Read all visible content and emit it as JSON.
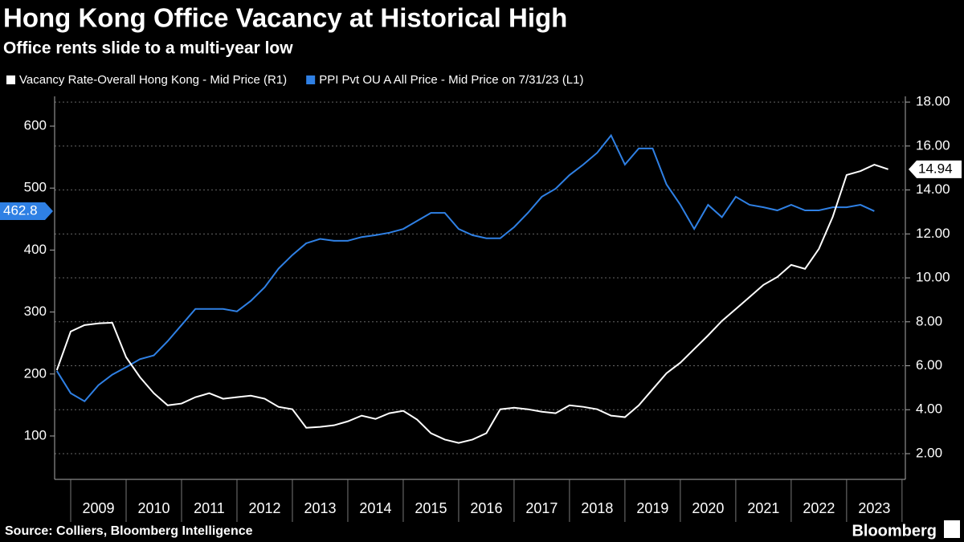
{
  "title": "Hong Kong Office Vacancy at Historical High",
  "subtitle": "Office rents slide to a multi-year low",
  "source": "Source: Colliers, Bloomberg Intelligence",
  "brand": "Bloomberg",
  "chart_data": {
    "type": "line",
    "x": [
      2008.75,
      2009,
      2009.25,
      2009.5,
      2009.75,
      2010,
      2010.25,
      2010.5,
      2010.75,
      2011,
      2011.25,
      2011.5,
      2011.75,
      2012,
      2012.25,
      2012.5,
      2012.75,
      2013,
      2013.25,
      2013.5,
      2013.75,
      2014,
      2014.25,
      2014.5,
      2014.75,
      2015,
      2015.25,
      2015.5,
      2015.75,
      2016,
      2016.25,
      2016.5,
      2016.75,
      2017,
      2017.25,
      2017.5,
      2017.75,
      2018,
      2018.25,
      2018.5,
      2018.75,
      2019,
      2019.25,
      2019.5,
      2019.75,
      2020,
      2020.25,
      2020.5,
      2020.75,
      2021,
      2021.25,
      2021.5,
      2021.75,
      2022,
      2022.25,
      2022.5,
      2022.75,
      2023,
      2023.25,
      2023.5,
      2023.75
    ],
    "series": [
      {
        "name": "PPI Pvt OU A All Price - Mid Price on 7/31/23 (L1)",
        "color": "#2f80e4",
        "values": [
          205,
          169,
          156,
          182,
          199,
          211,
          224,
          230,
          253,
          279,
          305,
          305,
          305,
          301,
          318,
          340,
          370,
          392,
          411,
          418,
          415,
          415,
          421,
          424,
          428,
          434,
          447,
          460,
          460,
          434,
          424,
          419,
          419,
          437,
          460,
          486,
          499,
          521,
          538,
          557,
          585,
          538,
          564,
          564,
          506,
          473,
          434,
          473,
          453,
          486,
          473,
          469,
          464,
          473,
          464,
          464,
          469,
          469,
          473,
          462.8,
          null
        ]
      },
      {
        "name": "Vacancy Rate-Overall Hong Kong - Mid Price (R1)",
        "color": "#ffffff",
        "axis": "y2",
        "values": [
          5.8,
          7.56,
          7.85,
          7.93,
          7.96,
          6.39,
          5.48,
          4.75,
          4.2,
          4.28,
          4.57,
          4.75,
          4.5,
          4.57,
          4.64,
          4.5,
          4.13,
          4.02,
          3.18,
          3.22,
          3.29,
          3.47,
          3.73,
          3.58,
          3.84,
          3.95,
          3.55,
          2.93,
          2.64,
          2.49,
          2.64,
          2.93,
          4.02,
          4.09,
          4.02,
          3.91,
          3.84,
          4.2,
          4.13,
          4.02,
          3.73,
          3.66,
          4.2,
          4.93,
          5.66,
          6.14,
          6.76,
          7.38,
          8.04,
          8.58,
          9.13,
          9.68,
          10.04,
          10.59,
          10.41,
          11.32,
          12.78,
          14.68,
          14.86,
          15.15,
          14.94
        ]
      }
    ],
    "xlim": [
      2008.71,
      2024.06
    ],
    "xticks": [
      {
        "value": 2009.5,
        "label": "2009"
      },
      {
        "value": 2010.5,
        "label": "2010"
      },
      {
        "value": 2011.5,
        "label": "2011"
      },
      {
        "value": 2012.5,
        "label": "2012"
      },
      {
        "value": 2013.5,
        "label": "2013"
      },
      {
        "value": 2014.5,
        "label": "2014"
      },
      {
        "value": 2015.5,
        "label": "2015"
      },
      {
        "value": 2016.5,
        "label": "2016"
      },
      {
        "value": 2017.5,
        "label": "2017"
      },
      {
        "value": 2018.5,
        "label": "2018"
      },
      {
        "value": 2019.5,
        "label": "2019"
      },
      {
        "value": 2020.5,
        "label": "2020"
      },
      {
        "value": 2021.5,
        "label": "2021"
      },
      {
        "value": 2022.5,
        "label": "2022"
      },
      {
        "value": 2023.5,
        "label": "2023"
      }
    ],
    "ylim": [
      30,
      648
    ],
    "yticks": [
      100,
      200,
      300,
      400,
      500,
      600
    ],
    "y2lim": [
      0.83,
      18.26
    ],
    "y2ticks": [
      {
        "value": 2,
        "label": "2.00"
      },
      {
        "value": 4,
        "label": "4.00"
      },
      {
        "value": 6,
        "label": "6.00"
      },
      {
        "value": 8,
        "label": "8.00"
      },
      {
        "value": 10,
        "label": "10.00"
      },
      {
        "value": 12,
        "label": "12.00"
      },
      {
        "value": 14,
        "label": "14.00"
      },
      {
        "value": 16,
        "label": "16.00"
      },
      {
        "value": 18,
        "label": "18.00"
      }
    ],
    "grid": true
  }
}
